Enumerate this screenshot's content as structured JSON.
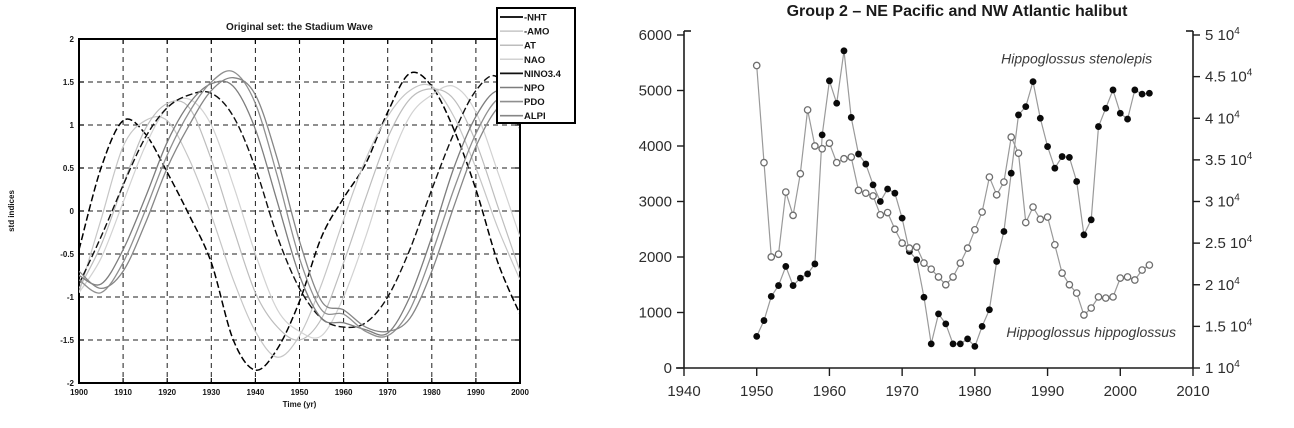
{
  "page": {
    "background": "#ffffff"
  },
  "chart_data": [
    {
      "id": "stadium-wave",
      "type": "line",
      "title": "Original set: the Stadium Wave",
      "xlabel": "Time (yr)",
      "ylabel": "std indices",
      "xlim": [
        1900,
        2000
      ],
      "ylim": [
        -2,
        2
      ],
      "xticks": [
        1900,
        1910,
        1920,
        1930,
        1940,
        1950,
        1960,
        1970,
        1980,
        1990,
        2000
      ],
      "yticks": [
        2,
        1.5,
        1,
        0.5,
        0,
        -0.5,
        -1,
        -1.5,
        -2
      ],
      "grid": "dashed",
      "legend_position": "outside-top-right",
      "x_start": 1900,
      "x_step": 5,
      "series": [
        {
          "name": "-NHT",
          "color": "#000000",
          "width": 1.5,
          "dash": "7 3",
          "values": [
            -0.45,
            0.5,
            1.05,
            0.9,
            0.45,
            -0.05,
            -0.6,
            -1.5,
            -1.85,
            -1.6,
            -1.05,
            -0.3,
            0.15,
            0.55,
            1.15,
            1.6,
            1.45,
            0.95,
            0.25,
            -0.6,
            -1.2
          ]
        },
        {
          "name": "-AMO",
          "color": "#c6c6c6",
          "width": 1.2,
          "dash": "",
          "values": [
            -0.95,
            -0.1,
            0.75,
            1.05,
            1.05,
            0.6,
            -0.05,
            -0.8,
            -1.4,
            -1.7,
            -1.45,
            -0.85,
            -0.1,
            0.6,
            1.1,
            1.4,
            1.45,
            1.1,
            0.5,
            -0.2,
            -0.8
          ]
        },
        {
          "name": "AT",
          "color": "#bdbdbd",
          "width": 1.2,
          "dash": "",
          "values": [
            -0.9,
            -0.4,
            0.3,
            0.95,
            1.25,
            1.2,
            0.6,
            -0.2,
            -0.95,
            -1.35,
            -1.5,
            -1.25,
            -0.6,
            0.15,
            0.85,
            1.3,
            1.42,
            1.3,
            0.8,
            0.05,
            -0.7
          ]
        },
        {
          "name": "NAO",
          "color": "#d2d2d2",
          "width": 1.2,
          "dash": "",
          "values": [
            -0.95,
            -0.55,
            0.1,
            0.75,
            1.2,
            1.3,
            1.0,
            0.3,
            -0.5,
            -1.15,
            -1.4,
            -1.45,
            -1.0,
            -0.3,
            0.5,
            1.1,
            1.35,
            1.45,
            1.15,
            0.45,
            -0.3
          ]
        },
        {
          "name": "NINO3.4",
          "color": "#101010",
          "width": 1.4,
          "dash": "7 3",
          "values": [
            -0.85,
            -0.3,
            0.3,
            0.85,
            1.2,
            1.35,
            1.37,
            1.1,
            0.5,
            -0.3,
            -0.9,
            -1.25,
            -1.35,
            -1.3,
            -1.0,
            -0.45,
            0.25,
            0.9,
            1.4,
            1.55,
            0.95
          ]
        },
        {
          "name": "NPO",
          "color": "#7d7d7d",
          "width": 1.3,
          "dash": "",
          "values": [
            -0.75,
            -0.85,
            -0.45,
            0.15,
            0.8,
            1.25,
            1.48,
            1.45,
            0.95,
            0.1,
            -0.75,
            -1.25,
            -1.3,
            -1.38,
            -1.42,
            -1.0,
            -0.3,
            0.5,
            1.1,
            1.4,
            1.2
          ]
        },
        {
          "name": "PDO",
          "color": "#8f8f8f",
          "width": 1.3,
          "dash": "",
          "values": [
            -0.8,
            -0.95,
            -0.6,
            0.0,
            0.65,
            1.15,
            1.5,
            1.62,
            1.25,
            0.4,
            -0.55,
            -1.15,
            -1.2,
            -1.4,
            -1.45,
            -1.15,
            -0.5,
            0.25,
            0.9,
            1.3,
            1.25
          ]
        },
        {
          "name": "ALPI",
          "color": "#868686",
          "width": 1.3,
          "dash": "",
          "values": [
            -0.7,
            -0.9,
            -0.7,
            -0.15,
            0.5,
            1.0,
            1.4,
            1.55,
            1.35,
            0.6,
            -0.35,
            -1.05,
            -1.15,
            -1.35,
            -1.4,
            -1.25,
            -0.7,
            0.05,
            0.75,
            1.2,
            1.3
          ]
        }
      ]
    },
    {
      "id": "halibut",
      "type": "scatter-line",
      "title": "Group 2 – NE Pacific and NW Atlantic halibut",
      "xlim": [
        1940,
        2010
      ],
      "xticks": [
        1940,
        1950,
        1960,
        1970,
        1980,
        1990,
        2000,
        2010
      ],
      "left_axis": {
        "range": [
          0,
          6000
        ],
        "ticks": [
          0,
          1000,
          2000,
          3000,
          4000,
          5000,
          6000
        ]
      },
      "right_axis": {
        "range": [
          10000,
          50000
        ],
        "ticks": [
          10000,
          15000,
          20000,
          25000,
          30000,
          35000,
          40000,
          45000,
          50000
        ],
        "tick_format": "m 10^4"
      },
      "line_color": "#9a9a9a",
      "x_start": 1950,
      "x_step": 1,
      "series": [
        {
          "name": "Hippoglossus stenolepis",
          "axis": "right",
          "marker": "filled-circle",
          "marker_color": "#0a0a0a",
          "values": [
            13800,
            15700,
            18600,
            19900,
            22200,
            19900,
            20800,
            21300,
            22500,
            38000,
            44500,
            41800,
            48100,
            40100,
            35700,
            34500,
            32000,
            30000,
            31500,
            31000,
            28000,
            24000,
            23000,
            18500,
            12900,
            16500,
            15300,
            12900,
            12900,
            13500,
            12600,
            15000,
            17000,
            22800,
            26400,
            33400,
            40400,
            41400,
            44400,
            40000,
            36600,
            34000,
            35400,
            35300,
            32400,
            26000,
            27800,
            39000,
            41200,
            43400,
            40600,
            39900,
            43400,
            42900,
            43000
          ]
        },
        {
          "name": "Hippoglossus hippoglossus",
          "axis": "left",
          "marker": "open-circle",
          "marker_color": "#6e6e6e",
          "values": [
            5450,
            3700,
            2000,
            2050,
            3170,
            2750,
            3500,
            4650,
            4000,
            3950,
            4050,
            3700,
            3770,
            3800,
            3200,
            3150,
            3100,
            2760,
            2800,
            2500,
            2250,
            2160,
            2180,
            1890,
            1780,
            1640,
            1500,
            1640,
            1890,
            2160,
            2490,
            2810,
            3440,
            3120,
            3350,
            4160,
            3870,
            2620,
            2900,
            2680,
            2720,
            2220,
            1710,
            1500,
            1350,
            955,
            1080,
            1280,
            1260,
            1280,
            1620,
            1640,
            1585,
            1765,
            1855
          ]
        }
      ],
      "annotations": [
        {
          "text": "Hippoglossus stenolepis",
          "year": 1994,
          "value": 46600,
          "axis": "right"
        },
        {
          "text": "Hippoglossus hippoglossus",
          "year": 1996,
          "value": 560,
          "axis": "left"
        }
      ]
    }
  ]
}
